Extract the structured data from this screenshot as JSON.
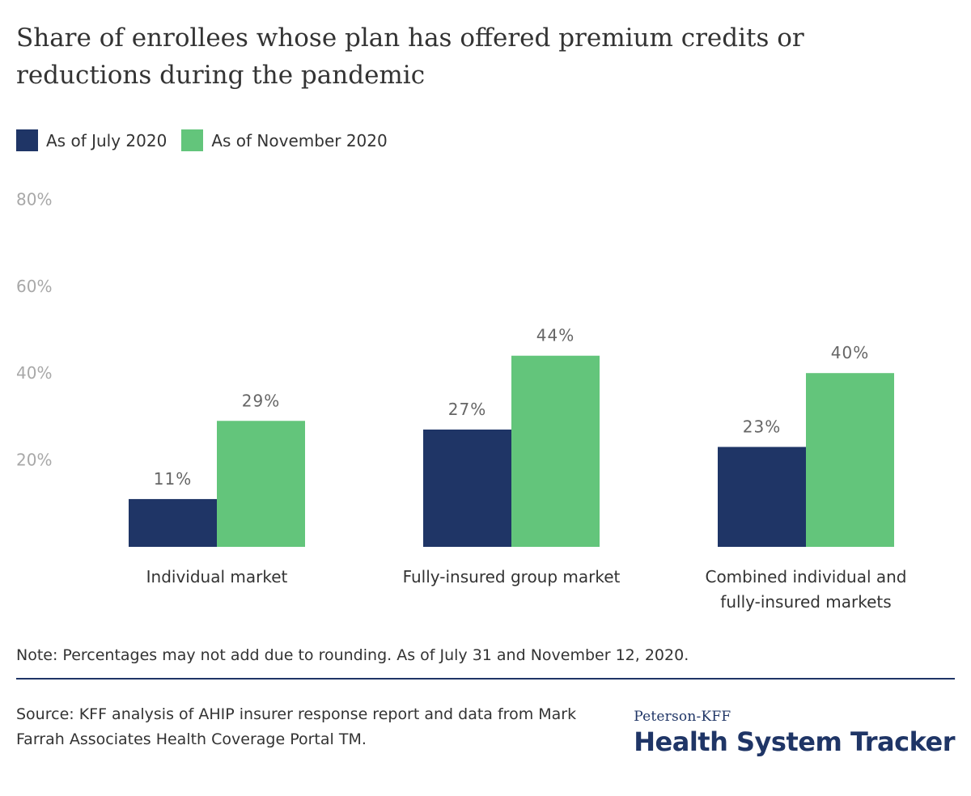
{
  "title": "Share of enrollees whose plan has offered premium credits or reductions during the pandemic",
  "legend": [
    {
      "label": "As of July 2020",
      "color": "#1f3566"
    },
    {
      "label": "As of November 2020",
      "color": "#63c57b"
    }
  ],
  "chart_data": {
    "type": "bar",
    "categories": [
      "Individual market",
      "Fully-insured group market",
      "Combined individual and fully-insured markets"
    ],
    "series": [
      {
        "name": "As of July 2020",
        "values": [
          11,
          27,
          23
        ],
        "labels": [
          "11%",
          "27%",
          "23%"
        ],
        "color": "#1f3566"
      },
      {
        "name": "As of November 2020",
        "values": [
          29,
          44,
          40
        ],
        "labels": [
          "29%",
          "44%",
          "40%"
        ],
        "color": "#63c57b"
      }
    ],
    "ylim": [
      0,
      80
    ],
    "yticks": [
      20,
      40,
      60,
      80
    ],
    "ytick_labels": [
      "20%",
      "40%",
      "60%",
      "80%"
    ],
    "grid": false
  },
  "note": "Note: Percentages may not add due to rounding. As of July 31 and November 12, 2020.",
  "source": "Source: KFF analysis of AHIP insurer response report and data from Mark Farrah Associates Health Coverage Portal TM.",
  "logo": {
    "top": "Peterson-KFF",
    "main": "Health System Tracker"
  }
}
